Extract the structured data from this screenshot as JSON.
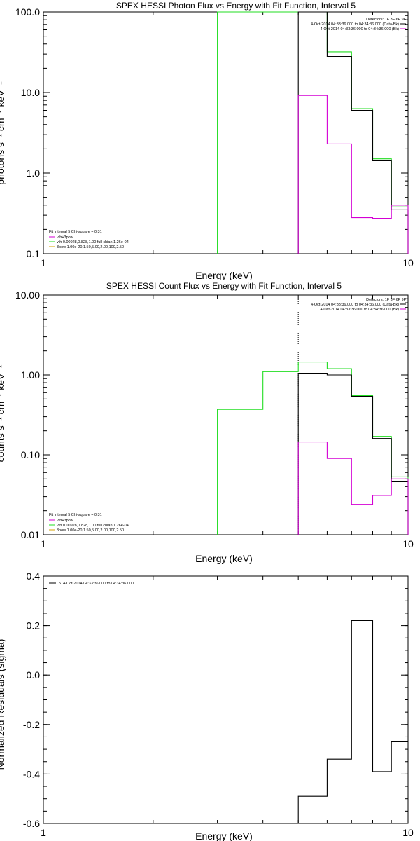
{
  "colors": {
    "black": "#000000",
    "magenta": "#d400d4",
    "green": "#22dd22"
  },
  "chart_data": [
    {
      "type": "line",
      "step": true,
      "xscale": "log",
      "yscale": "log",
      "title": "SPEX HESSI Photon Flux vs Energy with Fit Function, Interval 5",
      "xlabel": "Energy (keV)",
      "ylabel": "photons s⁻¹ cm⁻² keV⁻¹",
      "xlim": [
        1,
        10
      ],
      "ylim": [
        0.1,
        100
      ],
      "x_ticks": [
        {
          "v": 1,
          "label": "1"
        },
        {
          "v": 10,
          "label": "10"
        }
      ],
      "y_ticks": [
        {
          "v": 0.1,
          "label": "0.1"
        },
        {
          "v": 1,
          "label": "1.0"
        },
        {
          "v": 10,
          "label": "10.0"
        },
        {
          "v": 100,
          "label": "100.0"
        }
      ],
      "legend_top": [
        "Detectors: 1F 3F 6F 9F",
        "4-Oct-2014 04:33:36.000 to 04:34:36.000 (Data-Bk)",
        "4-Oct-2014 04:33:36.000 to 04:34:36.000 (Bk)"
      ],
      "legend_bottom_header": "Fit Interval 5   Chi-square = 0.31",
      "legend_bottom": [
        "vth+3pow",
        "vth 0.00928,0.828,1.00   full chian 1.26e-04",
        "3pow 1.00e-20,1.50,5.00,2.00,100,2.50"
      ],
      "series": [
        {
          "color": "green",
          "edges": [
            3.0,
            4.0,
            5.0,
            6.0,
            7.0,
            8.0,
            9.0,
            10.0
          ],
          "values": [
            100,
            100,
            100,
            32,
            6.3,
            1.5,
            0.38
          ]
        },
        {
          "color": "black",
          "edges": [
            5.0,
            6.0,
            7.0,
            8.0,
            9.0,
            10.0
          ],
          "values": [
            100,
            28,
            6.0,
            1.42,
            0.35
          ]
        },
        {
          "color": "magenta",
          "edges": [
            5.0,
            6.0,
            7.0,
            8.0,
            9.0,
            10.0
          ],
          "values": [
            9.2,
            2.3,
            0.28,
            0.275,
            0.4
          ]
        }
      ]
    },
    {
      "type": "line",
      "step": true,
      "xscale": "log",
      "yscale": "log",
      "title": "SPEX HESSI Count Flux vs Energy with Fit Function, Interval 5",
      "xlabel": "Energy (keV)",
      "ylabel": "counts s⁻¹ cm⁻² keV⁻¹",
      "xlim": [
        1,
        10
      ],
      "ylim": [
        0.01,
        10
      ],
      "x_ticks": [
        {
          "v": 1,
          "label": "1"
        },
        {
          "v": 10,
          "label": "10"
        }
      ],
      "y_ticks": [
        {
          "v": 0.01,
          "label": "0.01"
        },
        {
          "v": 0.1,
          "label": "0.10"
        },
        {
          "v": 1,
          "label": "1.00"
        },
        {
          "v": 10,
          "label": "10.00"
        }
      ],
      "legend_top": [
        "Detectors: 1F 3F 6F 9F",
        "4-Oct-2014 04:33:36.000 to 04:34:36.000 (Data-Bk)",
        "4-Oct-2014 04:33:36.000 to 04:34:36.000 (Bk)"
      ],
      "legend_bottom_header": "Fit Interval 5   Chi-square = 0.31",
      "legend_bottom": [
        "vth+3pow",
        "vth 0.00928,0.828,1.00   full chian 1.26e-04",
        "3pow 1.00e-20,1.50,5.00,2.00,100,2.50"
      ],
      "series": [
        {
          "color": "green",
          "edges": [
            3.0,
            4.0,
            5.0,
            6.0,
            7.0,
            8.0,
            9.0,
            10.0
          ],
          "values": [
            0.37,
            1.1,
            1.45,
            1.2,
            0.55,
            0.17,
            0.053
          ]
        },
        {
          "color": "black",
          "edges": [
            5.0,
            6.0,
            7.0,
            8.0,
            9.0,
            10.0
          ],
          "values": [
            1.05,
            1.0,
            0.54,
            0.16,
            0.046
          ]
        },
        {
          "color": "magenta",
          "edges": [
            5.0,
            6.0,
            7.0,
            8.0,
            9.0,
            10.0
          ],
          "values": [
            0.145,
            0.09,
            0.024,
            0.031,
            0.05
          ]
        }
      ]
    },
    {
      "type": "line",
      "step": true,
      "xscale": "log",
      "yscale": "linear",
      "title": "",
      "xlabel": "Energy (keV)",
      "ylabel": "Normalized Residuals (sigma)",
      "xlim": [
        1,
        10
      ],
      "ylim": [
        -0.6,
        0.4
      ],
      "x_ticks": [
        {
          "v": 1,
          "label": "1"
        },
        {
          "v": 10,
          "label": "10"
        }
      ],
      "y_ticks": [
        {
          "v": -0.6,
          "label": "-0.6"
        },
        {
          "v": -0.4,
          "label": "-0.4"
        },
        {
          "v": -0.2,
          "label": "-0.2"
        },
        {
          "v": 0.0,
          "label": "0.0"
        },
        {
          "v": 0.2,
          "label": "0.2"
        },
        {
          "v": 0.4,
          "label": "0.4"
        }
      ],
      "legend": [
        "5.  4-Oct-2014 04:33:36.000 to 04:34:36.000"
      ],
      "series": [
        {
          "color": "black",
          "edges": [
            5.0,
            6.0,
            7.0,
            8.0,
            9.0,
            10.0
          ],
          "values": [
            -0.49,
            -0.34,
            0.22,
            -0.39,
            -0.27
          ]
        }
      ]
    }
  ]
}
